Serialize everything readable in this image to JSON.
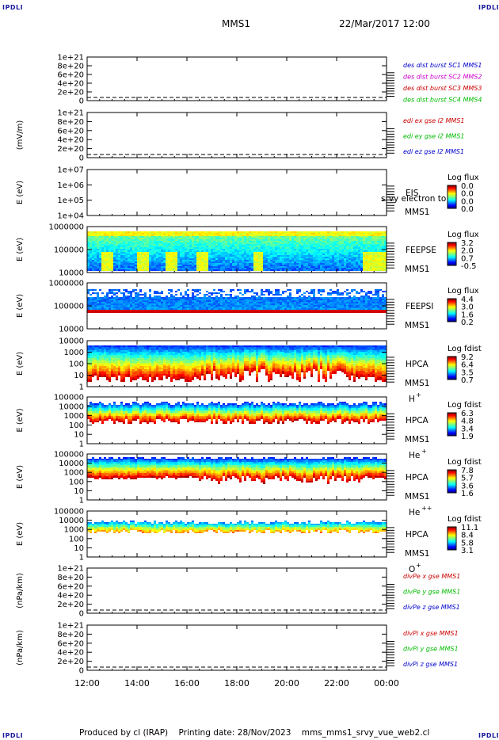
{
  "header": {
    "corner_label": "IPDLI",
    "spacecraft": "MMS1",
    "datetime": "22/Mar/2017 12:00"
  },
  "footer": {
    "text": "Produced by cl (IRAP)    Printing date: 28/Nov/2023    mms_mms1_srvy_vue_web2.cl"
  },
  "chart_data": [
    {
      "type": "line",
      "id": "des",
      "ylabel": "",
      "ylim": [
        0,
        1e+21
      ],
      "y_ticks": [
        "1e+21",
        "8e+20",
        "6e+20",
        "4e+20",
        "2e+20",
        "0"
      ],
      "zero_dashed": true,
      "series": [
        {
          "name": "des dist burst SC1 MMS1",
          "color": "#0000cc",
          "values": []
        },
        {
          "name": "des dist burst SC2 MMS2",
          "color": "#cc00cc",
          "values": []
        },
        {
          "name": "des dist burst SC3 MMS3",
          "color": "#cc0000",
          "values": []
        },
        {
          "name": "des dist burst SC4 MMS4",
          "color": "#00bb00",
          "values": []
        }
      ]
    },
    {
      "type": "line",
      "id": "edi",
      "ylabel": "(mV/m)",
      "ylim": [
        0,
        1e+21
      ],
      "y_ticks": [
        "1e+21",
        "8e+20",
        "6e+20",
        "4e+20",
        "2e+20",
        "0"
      ],
      "zero_dashed": true,
      "series": [
        {
          "name": "edi ex gse l2 MMS1",
          "color": "#cc0000",
          "values": []
        },
        {
          "name": "edi ey gse l2 MMS1",
          "color": "#00bb00",
          "values": []
        },
        {
          "name": "edi ez gse l2 MMS1",
          "color": "#0000cc",
          "values": []
        }
      ]
    },
    {
      "type": "heatmap",
      "id": "eis",
      "ylabel": "E (eV)",
      "yscale": "log",
      "ylim": [
        10000.0,
        10000000.0
      ],
      "y_ticks": [
        "1e+07",
        "1e+06",
        "1e+05",
        "1e+04"
      ],
      "instrument": "EIS",
      "spacecraft": "MMS1",
      "overlay_text": "srvy electron to",
      "colorbar": {
        "title": "Log flux",
        "ticks": [
          "0.0",
          "0.0",
          "0.0",
          "0.0"
        ]
      },
      "fill": "none"
    },
    {
      "type": "heatmap",
      "id": "feepse",
      "ylabel": "E (eV)",
      "yscale": "log",
      "ylim": [
        10000.0,
        1000000.0
      ],
      "y_ticks": [
        "1000000",
        "100000",
        "10000"
      ],
      "instrument": "FEEPSE",
      "spacecraft": "MMS1",
      "colorbar": {
        "title": "Log flux",
        "ticks": [
          "3.2",
          "2.0",
          "0.7",
          "-0.5"
        ],
        "range": [
          -0.5,
          3.2
        ]
      },
      "fill": "electrons"
    },
    {
      "type": "heatmap",
      "id": "feepsi",
      "ylabel": "E (eV)",
      "yscale": "log",
      "ylim": [
        10000.0,
        1000000.0
      ],
      "y_ticks": [
        "1000000",
        "100000",
        "10000"
      ],
      "instrument": "FEEPSI",
      "spacecraft": "MMS1",
      "colorbar": {
        "title": "Log flux",
        "ticks": [
          "4.4",
          "3.0",
          "1.6",
          "0.2"
        ],
        "range": [
          0.2,
          4.4
        ]
      },
      "fill": "ions"
    },
    {
      "type": "heatmap",
      "id": "hpca_h",
      "ylabel": "E (eV)",
      "yscale": "log",
      "ylim": [
        1,
        10000.0
      ],
      "y_ticks": [
        "10000",
        "1000",
        "100",
        "10",
        "1"
      ],
      "instrument": "HPCA",
      "spacecraft": "MMS1",
      "species": "H",
      "charge": "+",
      "colorbar": {
        "title": "Log fdist",
        "ticks": [
          "9.2",
          "6.4",
          "3.5",
          "0.7"
        ],
        "range": [
          0.7,
          9.2
        ]
      },
      "fill": "hplus"
    },
    {
      "type": "heatmap",
      "id": "hpca_he1",
      "ylabel": "E (eV)",
      "yscale": "log",
      "ylim": [
        1,
        100000.0
      ],
      "y_ticks": [
        "100000",
        "10000",
        "1000",
        "100",
        "10",
        "1"
      ],
      "instrument": "HPCA",
      "spacecraft": "MMS1",
      "species": "He",
      "charge": "+",
      "colorbar": {
        "title": "Log fdist",
        "ticks": [
          "6.3",
          "4.8",
          "3.4",
          "1.9"
        ],
        "range": [
          1.9,
          6.3
        ]
      },
      "fill": "heplus"
    },
    {
      "type": "heatmap",
      "id": "hpca_he2",
      "ylabel": "E (eV)",
      "yscale": "log",
      "ylim": [
        1,
        100000.0
      ],
      "y_ticks": [
        "100000",
        "10000",
        "1000",
        "100",
        "10",
        "1"
      ],
      "instrument": "HPCA",
      "spacecraft": "MMS1",
      "species": "He",
      "charge": "++",
      "colorbar": {
        "title": "Log fdist",
        "ticks": [
          "7.8",
          "5.7",
          "3.6",
          "1.6"
        ],
        "range": [
          1.6,
          7.8
        ]
      },
      "fill": "heplusplus"
    },
    {
      "type": "heatmap",
      "id": "hpca_o",
      "ylabel": "E (eV)",
      "yscale": "log",
      "ylim": [
        1,
        100000.0
      ],
      "y_ticks": [
        "100000",
        "10000",
        "1000",
        "100",
        "10",
        "1"
      ],
      "instrument": "HPCA",
      "spacecraft": "MMS1",
      "species": "O",
      "charge": "+",
      "colorbar": {
        "title": "Log fdist",
        "ticks": [
          "11.1",
          "8.4",
          "5.8",
          "3.1"
        ],
        "range": [
          3.1,
          11.1
        ]
      },
      "fill": "oplus"
    },
    {
      "type": "line",
      "id": "divpe",
      "ylabel": "(nPa/km)",
      "ylim": [
        0,
        1e+21
      ],
      "y_ticks": [
        "1e+21",
        "8e+20",
        "6e+20",
        "4e+20",
        "2e+20",
        "0"
      ],
      "zero_dashed": true,
      "series": [
        {
          "name": "divPe x gse MMS1",
          "color": "#cc0000",
          "values": []
        },
        {
          "name": "divPe y gse MMS1",
          "color": "#00bb00",
          "values": []
        },
        {
          "name": "divPe z gse MMS1",
          "color": "#0000cc",
          "values": []
        }
      ]
    },
    {
      "type": "line",
      "id": "divpi",
      "ylabel": "(nPa/km)",
      "ylim": [
        0,
        1e+21
      ],
      "y_ticks": [
        "1e+21",
        "8e+20",
        "6e+20",
        "4e+20",
        "2e+20",
        "0"
      ],
      "zero_dashed": true,
      "series": [
        {
          "name": "divPi x gse MMS1",
          "color": "#cc0000",
          "values": []
        },
        {
          "name": "divPi y gse MMS1",
          "color": "#00bb00",
          "values": []
        },
        {
          "name": "divPi z gse MMS1",
          "color": "#0000cc",
          "values": []
        }
      ]
    }
  ],
  "x_axis": {
    "tick_labels": [
      "12:00",
      "14:00",
      "16:00",
      "18:00",
      "20:00",
      "22:00",
      "00:00"
    ],
    "xlim": [
      "2017-03-22T12:00",
      "2017-03-23T00:00"
    ]
  }
}
